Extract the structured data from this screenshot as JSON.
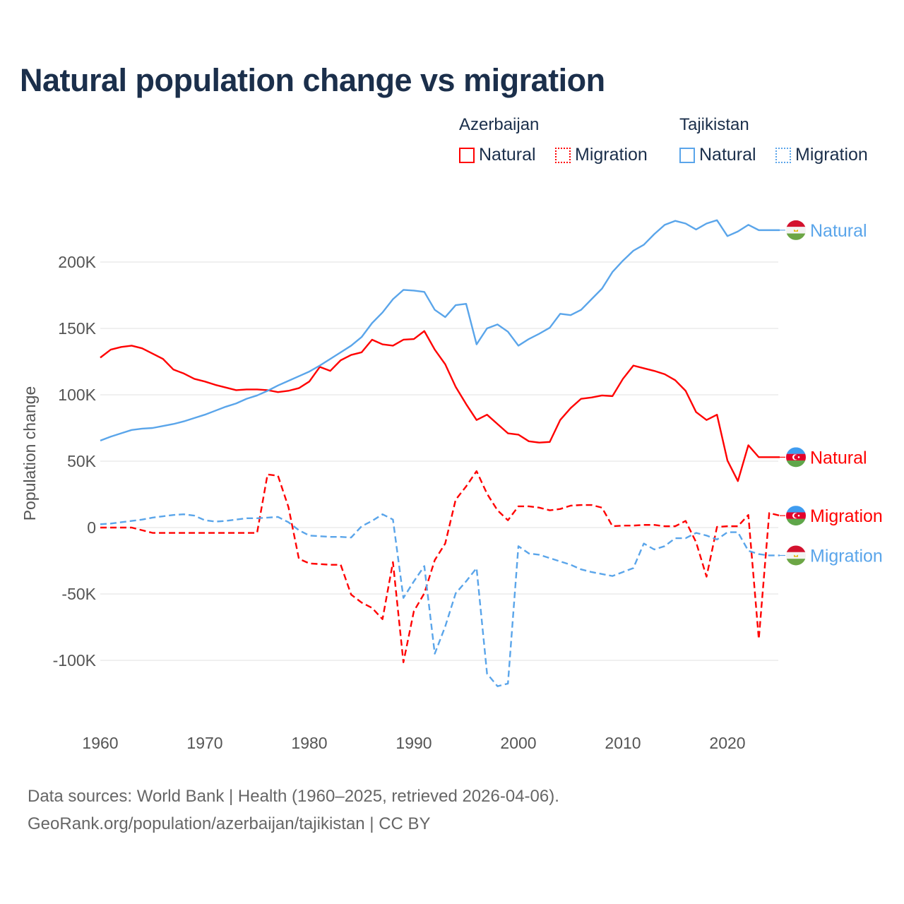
{
  "title": "Natural population change vs migration",
  "legend": {
    "groups": [
      {
        "name": "Azerbaijan",
        "items": [
          {
            "label": "Natural",
            "style": "solid",
            "color": "#ff0000"
          },
          {
            "label": "Migration",
            "style": "dotted",
            "color": "#ff0000"
          }
        ]
      },
      {
        "name": "Tajikistan",
        "items": [
          {
            "label": "Natural",
            "style": "solid",
            "color": "#5aa5ea"
          },
          {
            "label": "Migration",
            "style": "dotted",
            "color": "#5aa5ea"
          }
        ]
      }
    ]
  },
  "footer": {
    "line1": "Data sources: World Bank | Health (1960–2025, retrieved 2026-04-06).",
    "line2": "GeoRank.org/population/azerbaijan/tajikistan | CC BY"
  },
  "chart_data": {
    "type": "line",
    "title": "Natural population change vs migration",
    "xlabel": "",
    "ylabel": "Population change",
    "xlim": [
      1960,
      2025
    ],
    "ylim": [
      -135000,
      240000
    ],
    "x_ticks": [
      1960,
      1970,
      1980,
      1990,
      2000,
      2010,
      2020
    ],
    "y_ticks": [
      -100000,
      -50000,
      0,
      50000,
      100000,
      150000,
      200000
    ],
    "y_tick_labels": [
      "-100K",
      "-50K",
      "0",
      "50K",
      "100K",
      "150K",
      "200K"
    ],
    "grid": true,
    "start_year": 1960,
    "series": [
      {
        "name": "Natural",
        "country": "Azerbaijan",
        "flag": "azerbaijan-flag",
        "color": "#ff0000",
        "dash": false,
        "values_k": [
          128,
          134,
          136,
          137,
          135,
          131,
          127,
          119,
          116,
          112,
          110,
          107.5,
          105.5,
          103.5,
          104,
          104,
          103.5,
          102,
          103,
          105,
          110,
          121,
          118,
          126,
          130,
          132,
          141.5,
          138,
          137,
          141.5,
          142,
          148,
          134,
          123,
          106,
          93,
          81,
          85,
          78,
          71,
          70,
          65,
          64,
          64.5,
          81,
          90,
          97,
          98,
          99.5,
          99,
          112,
          122,
          120,
          118,
          115.5,
          111,
          103,
          87,
          81,
          85,
          50.5,
          35,
          62,
          53,
          53,
          53
        ]
      },
      {
        "name": "Migration",
        "country": "Azerbaijan",
        "flag": "azerbaijan-flag",
        "color": "#ff0000",
        "dash": true,
        "values_k": [
          0,
          0,
          0,
          0,
          -2,
          -4,
          -4,
          -4,
          -4,
          -4,
          -4,
          -4,
          -4,
          -4,
          -4,
          -4,
          40,
          39,
          15.5,
          -23.5,
          -27,
          -27.5,
          -28,
          -28,
          -50.5,
          -56.5,
          -60.5,
          -69,
          -26,
          -101.5,
          -63,
          -49.5,
          -24.5,
          -12,
          21,
          31,
          42.5,
          25.5,
          13,
          5.5,
          16,
          16,
          15,
          13,
          14,
          16.5,
          17,
          17,
          15,
          1,
          1.5,
          1.5,
          2,
          2,
          1,
          1,
          5,
          -11,
          -37,
          0.5,
          1,
          1,
          9.5,
          -84,
          11,
          9
        ]
      },
      {
        "name": "Natural",
        "country": "Tajikistan",
        "flag": "tajikistan-flag",
        "color": "#5aa5ea",
        "dash": false,
        "values_k": [
          65.5,
          68.5,
          71,
          73.5,
          74.5,
          75,
          76.5,
          78,
          80,
          82.5,
          85,
          88,
          91,
          93.5,
          97,
          99.5,
          103,
          107,
          110.5,
          114,
          117.5,
          122,
          127,
          132,
          137,
          143.5,
          154,
          162,
          172,
          179,
          178.5,
          177.5,
          164,
          158.5,
          167.5,
          168.5,
          138,
          150,
          153,
          147.5,
          137,
          142,
          146,
          150.5,
          161,
          160,
          164,
          172,
          180,
          192.5,
          201,
          208.5,
          213,
          221,
          228,
          231,
          229,
          224.5,
          229,
          231.5,
          219.5,
          223,
          228,
          224,
          224,
          224
        ]
      },
      {
        "name": "Migration",
        "country": "Tajikistan",
        "flag": "tajikistan-flag",
        "color": "#5aa5ea",
        "dash": true,
        "values_k": [
          2.5,
          3,
          4,
          5,
          6,
          7.5,
          8.5,
          9.5,
          10,
          9,
          5.5,
          4.5,
          5,
          6,
          7,
          7,
          7.5,
          8,
          4,
          -2,
          -6,
          -6.5,
          -7,
          -7,
          -7.5,
          1,
          5,
          10,
          6,
          -53,
          -40.5,
          -29,
          -95,
          -74.5,
          -49.5,
          -40.5,
          -30.5,
          -110,
          -119.5,
          -117.5,
          -14,
          -19.5,
          -20.5,
          -23,
          -25.5,
          -28,
          -31.5,
          -33.5,
          -35,
          -36.5,
          -33.5,
          -30.5,
          -12,
          -16.5,
          -14,
          -8,
          -8,
          -4,
          -6,
          -9,
          -3.5,
          -3.5,
          -17.5,
          -20,
          -21,
          -21
        ]
      }
    ]
  }
}
